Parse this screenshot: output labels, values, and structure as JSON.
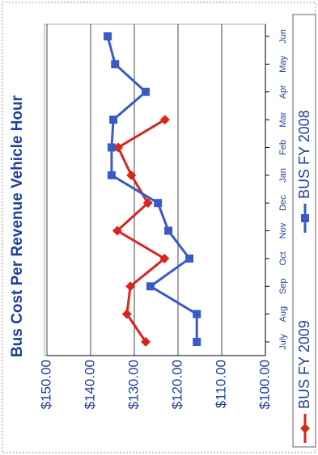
{
  "chart_data": {
    "type": "line",
    "title": "Bus Cost Per Revenue Vehicle Hour",
    "categories": [
      "July",
      "Aug",
      "Sep",
      "Oct",
      "Nov",
      "Dec",
      "Jan",
      "Feb",
      "Mar",
      "Apr",
      "May",
      "Jun"
    ],
    "series": [
      {
        "name": "BUS FY 2009",
        "color": "#d9261c",
        "marker": "diamond",
        "values": [
          127.4,
          131.7,
          130.9,
          123.1,
          133.9,
          126.9,
          130.7,
          133.7,
          123.0,
          null,
          null,
          null
        ]
      },
      {
        "name": "BUS FY 2008",
        "color": "#3a5bc7",
        "marker": "square",
        "values": [
          115.7,
          115.7,
          126.3,
          117.4,
          122.2,
          124.6,
          135.2,
          135.2,
          134.8,
          127.4,
          134.4,
          136.1
        ]
      }
    ],
    "ylim": [
      100,
      150
    ],
    "yticks": [
      {
        "value": 100,
        "label": "$100.00"
      },
      {
        "value": 110,
        "label": "$110.00"
      },
      {
        "value": 120,
        "label": "$120.00"
      },
      {
        "value": 130,
        "label": "$130.00"
      },
      {
        "value": 140,
        "label": "$140.00"
      },
      {
        "value": 150,
        "label": "$150.00"
      }
    ],
    "grid": true
  }
}
